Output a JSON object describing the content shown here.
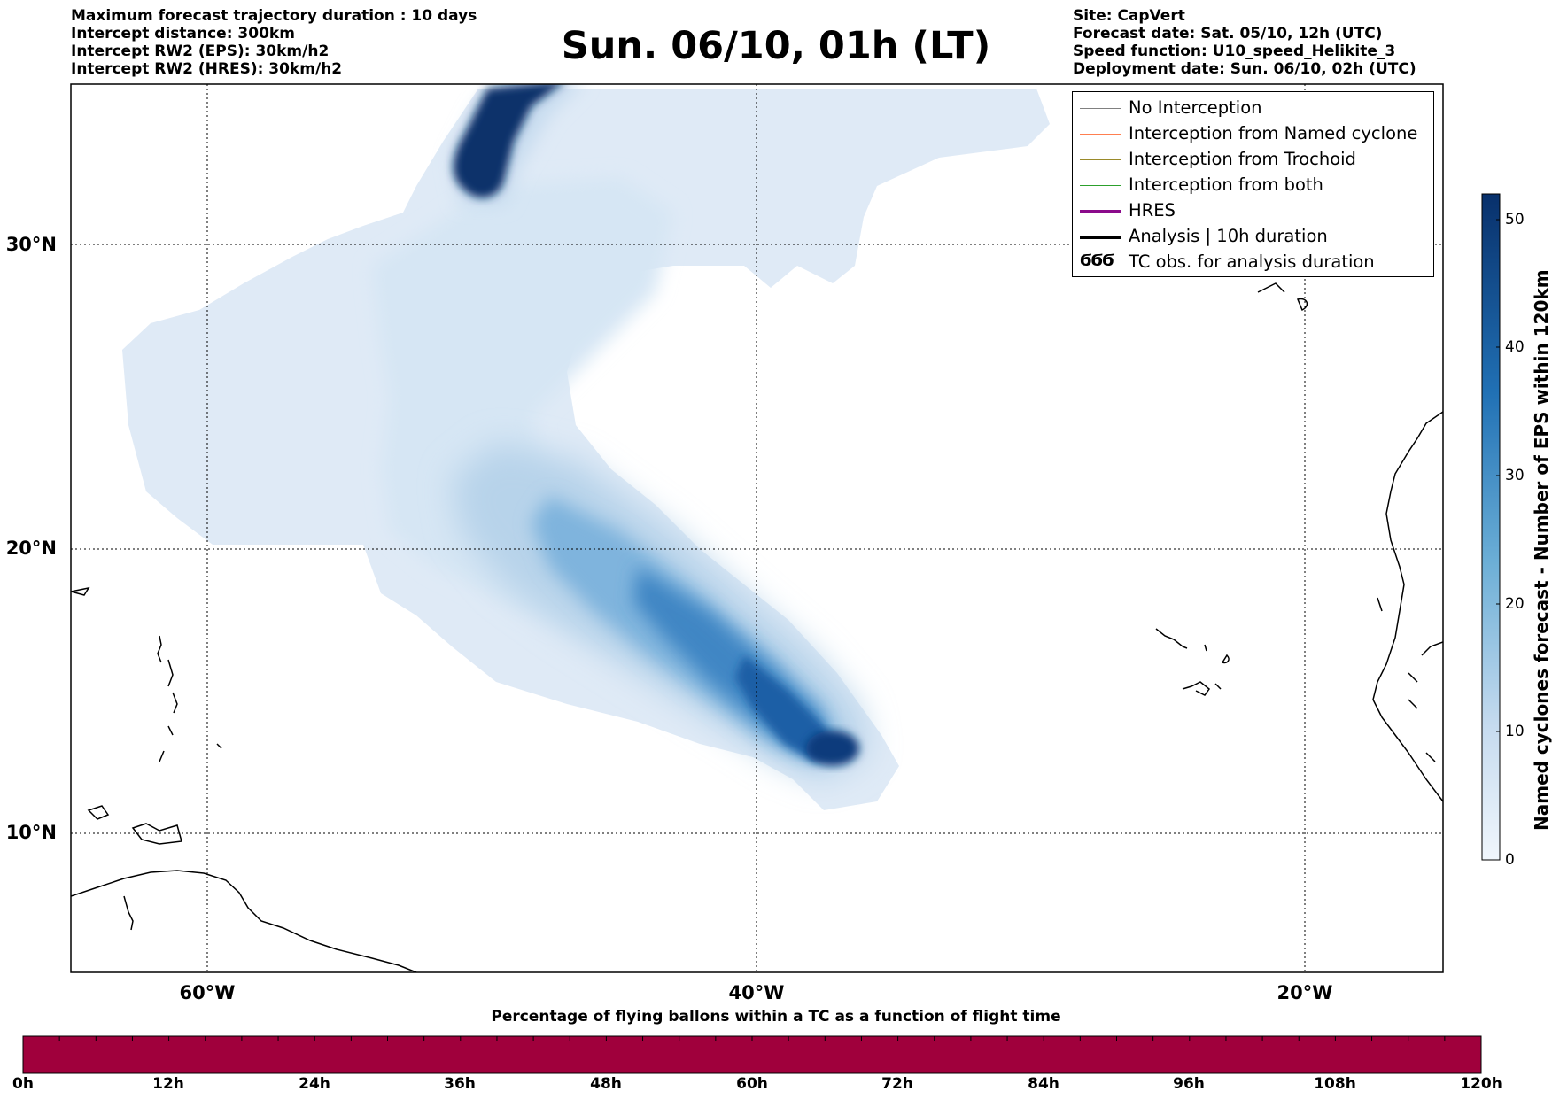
{
  "header_left": [
    "Maximum forecast trajectory duration : 10 days",
    "Intercept distance: 300km",
    "Intercept RW2 (EPS):  30km/h2",
    "Intercept RW2 (HRES): 30km/h2"
  ],
  "header_right": [
    "Site: CapVert",
    "Forecast date: Sat. 05/10, 12h (UTC)",
    "Speed function: U10_speed_Helikite_3",
    "Deployment date: Sun. 06/10, 02h (UTC)"
  ],
  "title": "Sun. 06/10, 01h (LT)",
  "map": {
    "lat_labels": [
      "30°N",
      "20°N",
      "10°N"
    ],
    "lon_labels": [
      "60°W",
      "40°W",
      "20°W"
    ],
    "lat_values": [
      30,
      20,
      10
    ],
    "lon_values": [
      -60,
      -40,
      -20
    ],
    "extent": {
      "lon_min": -65,
      "lon_max": -15,
      "lat_min": 5.4,
      "lat_max": 35.3
    },
    "gridlines": "dotted"
  },
  "legend": {
    "items": [
      {
        "label": "No Interception",
        "color": "#808080",
        "style": "thin-line",
        "icon": "line"
      },
      {
        "label": "Interception from Named cyclone",
        "color": "#ff7f50",
        "style": "thin-line",
        "icon": "line"
      },
      {
        "label": "Interception from Trochoid",
        "color": "#9a8a2a",
        "style": "thin-line",
        "icon": "line"
      },
      {
        "label": "Interception from both",
        "color": "#2ca02c",
        "style": "thin-line",
        "icon": "line"
      },
      {
        "label": "HRES",
        "color": "#8b0a8b",
        "style": "thick-line",
        "icon": "line"
      },
      {
        "label": "Analysis | 10h duration",
        "color": "#000000",
        "style": "thick-line",
        "icon": "line"
      },
      {
        "label": "TC obs. for analysis duration",
        "color": "#000000",
        "style": "symbol",
        "icon": "cyclone-symbols"
      }
    ],
    "tc_symbol": "ϬϬϬ"
  },
  "colorbar": {
    "title": "Named cyclones forecast - Number of EPS within 120km",
    "ticks": [
      "0",
      "10",
      "20",
      "30",
      "40",
      "50"
    ],
    "min": 0,
    "max": 52,
    "color_low": "#f0f6fc",
    "color_high": "#08306b"
  },
  "flight_bar": {
    "caption": "Percentage of flying ballons within a TC as a function of flight time",
    "ticks": [
      "0h",
      "12h",
      "24h",
      "36h",
      "48h",
      "60h",
      "72h",
      "84h",
      "96h",
      "108h",
      "120h"
    ],
    "fill_color": "#a0003c",
    "fill_fraction": 1.0
  },
  "chart_data": {
    "type": "heatmap",
    "title": "Sun. 06/10, 01h (LT)",
    "colorbar_label": "Named cyclones forecast - Number of EPS within 120km",
    "value_range": [
      0,
      52
    ],
    "density_track": [
      {
        "lon": -37.5,
        "lat": 12.0,
        "count": 52
      },
      {
        "lon": -39.5,
        "lat": 14.0,
        "count": 45
      },
      {
        "lon": -42.0,
        "lat": 16.5,
        "count": 32
      },
      {
        "lon": -45.0,
        "lat": 19.5,
        "count": 22
      },
      {
        "lon": -48.0,
        "lat": 22.0,
        "count": 12
      },
      {
        "lon": -50.0,
        "lat": 25.0,
        "count": 6
      },
      {
        "lon": -48.5,
        "lat": 32.0,
        "count": 52
      },
      {
        "lon": -47.0,
        "lat": 35.0,
        "count": 52
      }
    ]
  }
}
